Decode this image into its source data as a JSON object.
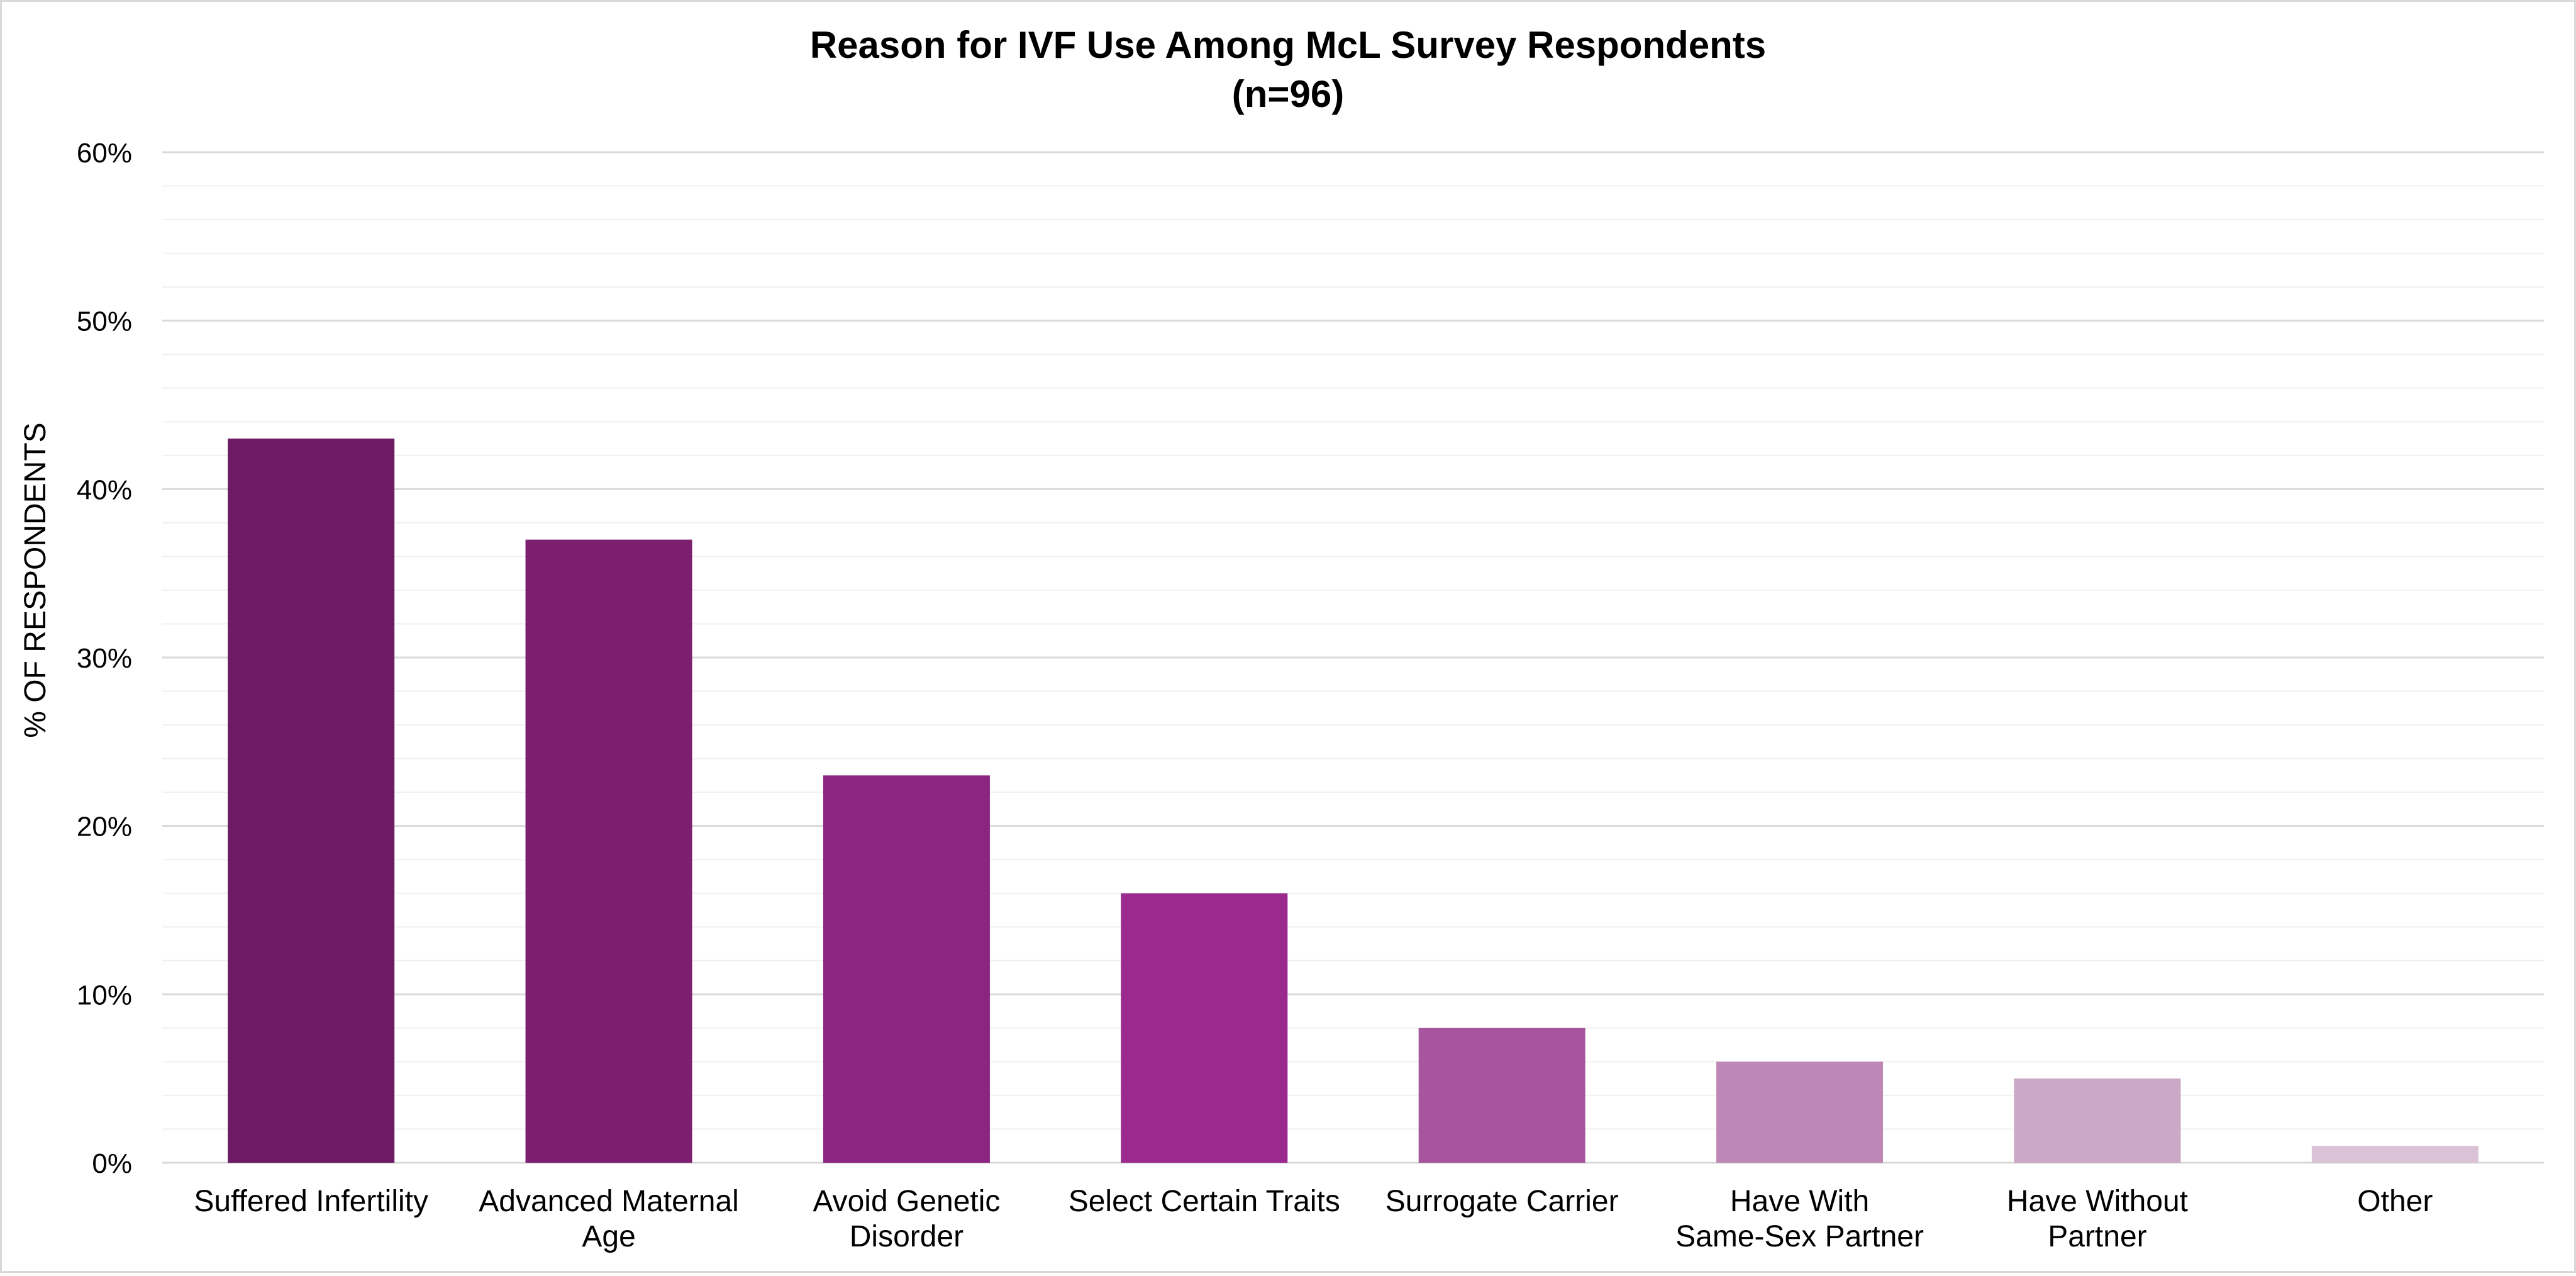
{
  "chart_data": {
    "type": "bar",
    "title": "Reason for IVF Use Among McL Survey Respondents",
    "subtitle": "(n=96)",
    "ylabel": "% OF RESPONDENTS",
    "xlabel": "",
    "ylim": [
      0,
      60
    ],
    "y_ticks": [
      0,
      10,
      20,
      30,
      40,
      50,
      60
    ],
    "y_tick_labels": [
      "0%",
      "10%",
      "20%",
      "30%",
      "40%",
      "50%",
      "60%"
    ],
    "y_tick_format": "percent",
    "grid": {
      "major": true,
      "minor": true,
      "minor_step": 2
    },
    "legend": "none",
    "categories": [
      "Suffered Infertility",
      "Advanced Maternal Age",
      "Avoid Genetic Disorder",
      "Select Certain Traits",
      "Surrogate Carrier",
      "Have With Same-Sex Partner",
      "Have Without Partner",
      "Other"
    ],
    "category_label_lines": [
      [
        "Suffered Infertility"
      ],
      [
        "Advanced Maternal",
        "Age"
      ],
      [
        "Avoid Genetic",
        "Disorder"
      ],
      [
        "Select Certain Traits"
      ],
      [
        "Surrogate Carrier"
      ],
      [
        "Have With",
        "Same-Sex Partner"
      ],
      [
        "Have Without",
        "Partner"
      ],
      [
        "Other"
      ]
    ],
    "values": [
      43,
      37,
      23,
      16,
      8,
      6,
      5,
      1
    ],
    "bar_colors": [
      "#6d1b62",
      "#7d1f71",
      "#8c2582",
      "#9a2a8e",
      "#a7569e",
      "#bd88b6",
      "#cba8c6",
      "#dac3d6"
    ]
  }
}
